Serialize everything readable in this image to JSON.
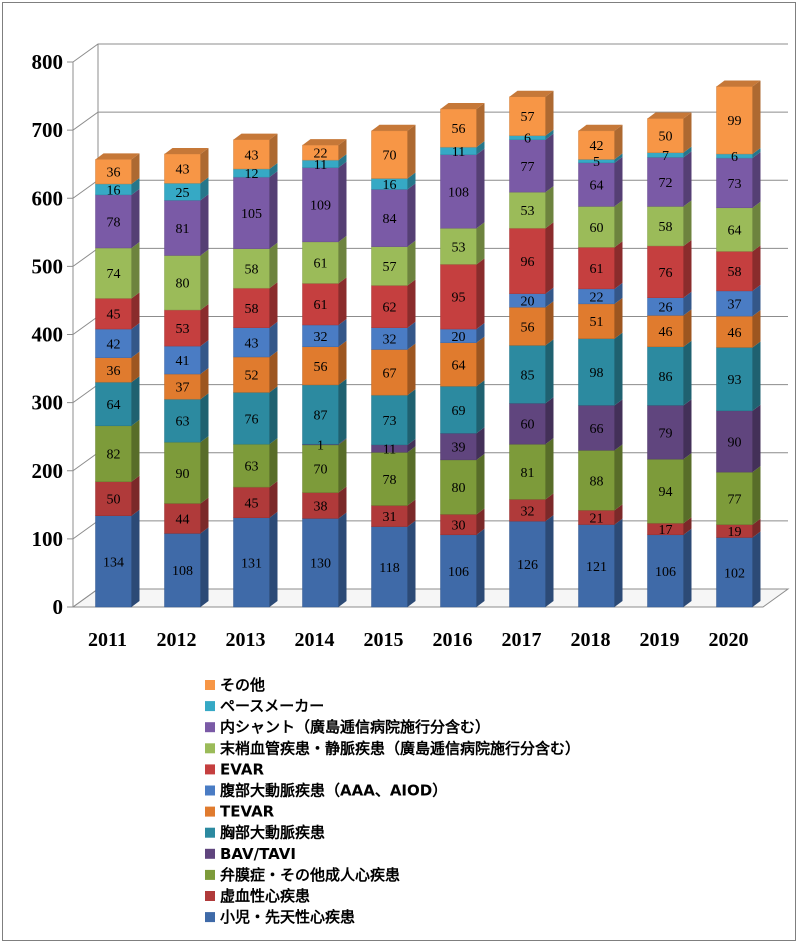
{
  "chart_data": {
    "type": "bar",
    "stacked": true,
    "three_d": true,
    "categories": [
      "2011",
      "2012",
      "2013",
      "2014",
      "2015",
      "2016",
      "2017",
      "2018",
      "2019",
      "2020"
    ],
    "ylim": [
      0,
      800
    ],
    "yticks": [
      "0",
      "100",
      "200",
      "300",
      "400",
      "500",
      "600",
      "700",
      "800"
    ],
    "legend_placement": "bottom",
    "series": [
      {
        "name": "小児・先天性心疾患",
        "color": "#3f6aa8",
        "values": [
          134,
          108,
          131,
          130,
          118,
          106,
          126,
          121,
          106,
          102
        ]
      },
      {
        "name": "虚血性心疾患",
        "color": "#b03a3a",
        "values": [
          50,
          44,
          45,
          38,
          31,
          30,
          32,
          21,
          17,
          19
        ]
      },
      {
        "name": "弁膜症・その他成人心疾患",
        "color": "#7d9b3a",
        "values": [
          82,
          90,
          63,
          70,
          78,
          80,
          81,
          88,
          94,
          77
        ]
      },
      {
        "name": "BAV/TAVI",
        "color": "#60457e",
        "values": [
          0,
          0,
          0,
          1,
          11,
          39,
          60,
          66,
          79,
          90
        ]
      },
      {
        "name": "胸部大動脈疾患",
        "color": "#2c8aa0",
        "values": [
          64,
          63,
          76,
          87,
          73,
          69,
          85,
          98,
          86,
          93
        ]
      },
      {
        "name": "TEVAR",
        "color": "#e07b2e",
        "values": [
          36,
          37,
          52,
          56,
          67,
          64,
          56,
          51,
          46,
          46
        ]
      },
      {
        "name": "腹部大動脈疾患（AAA、AIOD）",
        "color": "#4a7cc4",
        "values": [
          42,
          41,
          43,
          32,
          32,
          20,
          20,
          22,
          26,
          37
        ]
      },
      {
        "name": "EVAR",
        "color": "#c53f3f",
        "values": [
          45,
          53,
          58,
          61,
          62,
          95,
          96,
          61,
          76,
          58
        ]
      },
      {
        "name": "末梢血管疾患・静脈疾患（廣島逓信病院施行分含む）",
        "color": "#9bbb59",
        "values": [
          74,
          80,
          58,
          61,
          57,
          53,
          53,
          60,
          58,
          64
        ]
      },
      {
        "name": "内シャント（廣島逓信病院施行分含む）",
        "color": "#7a5aa6",
        "values": [
          78,
          81,
          105,
          109,
          84,
          108,
          77,
          64,
          72,
          73
        ]
      },
      {
        "name": "ペースメーカー",
        "color": "#36a9c5",
        "values": [
          16,
          25,
          12,
          11,
          16,
          11,
          6,
          5,
          7,
          6
        ]
      },
      {
        "name": "その他",
        "color": "#f79646",
        "values": [
          36,
          43,
          43,
          22,
          70,
          56,
          57,
          42,
          50,
          99
        ]
      }
    ]
  }
}
